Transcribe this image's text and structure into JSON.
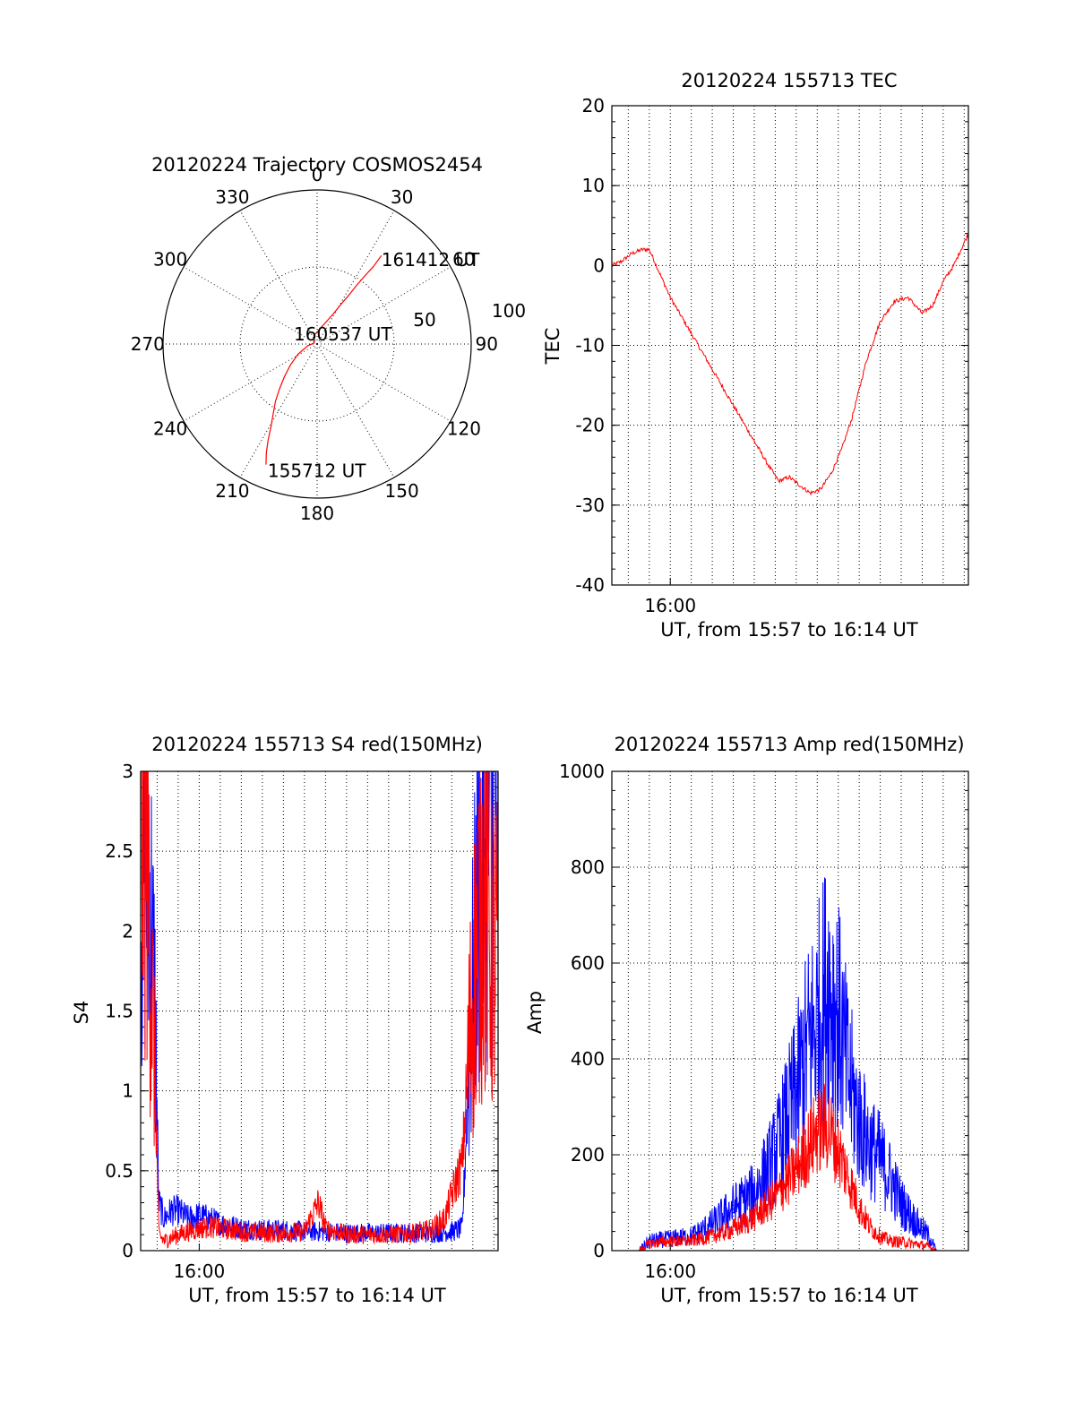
{
  "chart_data": [
    {
      "type": "polar",
      "title": "20120224 Trajectory COSMOS2454",
      "angle_labels": [
        "0",
        "30",
        "60",
        "90",
        "120",
        "150",
        "180",
        "210",
        "240",
        "270",
        "300",
        "330"
      ],
      "radius_labels": [
        "50",
        "100"
      ],
      "rmax": 100,
      "start_label": "155712 UT",
      "mid_label": "160537 UT",
      "end_label": "161412 UT",
      "series": [
        {
          "color": "#ff0000",
          "azimuth": [
            203,
            205,
            207,
            209,
            212,
            216,
            220,
            225,
            232,
            242,
            260,
            290,
            340,
            20,
            28,
            31,
            33,
            34,
            35,
            36,
            36
          ],
          "zenith": [
            85,
            78,
            70,
            62,
            54,
            46,
            38,
            30,
            22,
            14,
            6,
            2,
            6,
            14,
            22,
            30,
            38,
            46,
            54,
            62,
            71
          ]
        }
      ]
    },
    {
      "type": "line",
      "title": "20120224 155713 TEC",
      "xlabel": "UT, from 15:57 to 16:14 UT",
      "ylabel": "TEC",
      "xlim": [
        "15:57:13",
        "16:14:12"
      ],
      "ylim": [
        -40,
        20
      ],
      "yticks": [
        "20",
        "10",
        "0",
        "-10",
        "-20",
        "-30",
        "-40"
      ],
      "xtick_labels": [
        "16:00"
      ],
      "xtick_values": [
        "16:00"
      ],
      "series": [
        {
          "color": "#ff0000",
          "x": [
            "15:57:13",
            "15:57:40",
            "15:58:10",
            "15:58:40",
            "15:59:00",
            "15:59:30",
            "16:00:00",
            "16:00:40",
            "16:01:20",
            "16:02:00",
            "16:02:40",
            "16:03:20",
            "16:04:00",
            "16:04:40",
            "16:05:10",
            "16:05:40",
            "16:06:10",
            "16:06:40",
            "16:07:10",
            "16:07:40",
            "16:08:10",
            "16:08:40",
            "16:09:20",
            "16:10:00",
            "16:10:40",
            "16:11:20",
            "16:11:40",
            "16:12:00",
            "16:12:30",
            "16:13:00",
            "16:13:30",
            "16:14:12"
          ],
          "y": [
            0,
            0.5,
            1.5,
            2,
            2,
            -1,
            -4,
            -7,
            -10,
            -13,
            -16,
            -19,
            -22,
            -25,
            -27,
            -26.5,
            -27.5,
            -28.5,
            -28,
            -26,
            -23,
            -19,
            -12,
            -7,
            -4.5,
            -4,
            -5,
            -6,
            -5,
            -2,
            0,
            4
          ]
        }
      ]
    },
    {
      "type": "line",
      "title": "20120224 155713 S4 red(150MHz)",
      "xlabel": "UT, from 15:57 to 16:14 UT",
      "ylabel": "S4",
      "xlim": [
        "15:57:13",
        "16:14:12"
      ],
      "ylim": [
        0,
        3
      ],
      "yticks": [
        "3",
        "2.5",
        "2",
        "1.5",
        "1",
        "0.5",
        "0"
      ],
      "xtick_labels": [
        "16:00"
      ],
      "xtick_values": [
        "16:00"
      ],
      "series": [
        {
          "color": "#0000ff",
          "x": [
            "15:57:13",
            "15:57:25",
            "15:57:40",
            "15:57:55",
            "15:58:05",
            "15:58:20",
            "15:58:40",
            "15:59:00",
            "15:59:30",
            "16:00:00",
            "16:00:30",
            "16:01:00",
            "16:02:00",
            "16:03:00",
            "16:04:00",
            "16:05:00",
            "16:06:00",
            "16:07:00",
            "16:08:00",
            "16:09:00",
            "16:10:00",
            "16:11:00",
            "16:12:00",
            "16:12:30",
            "16:12:50",
            "16:13:10",
            "16:13:30",
            "16:13:50",
            "16:14:12"
          ],
          "y": [
            2.3,
            2.6,
            2.2,
            1.4,
            0.3,
            0.2,
            0.25,
            0.25,
            0.2,
            0.22,
            0.2,
            0.17,
            0.14,
            0.13,
            0.13,
            0.12,
            0.12,
            0.11,
            0.11,
            0.11,
            0.11,
            0.11,
            0.12,
            0.14,
            1.2,
            2.0,
            2.6,
            2.7,
            2.8
          ]
        },
        {
          "color": "#ff0000",
          "x": [
            "15:57:13",
            "15:57:25",
            "15:57:40",
            "15:57:55",
            "15:58:05",
            "15:58:20",
            "15:58:40",
            "15:59:00",
            "15:59:30",
            "16:00:00",
            "16:00:30",
            "16:01:00",
            "16:02:00",
            "16:03:00",
            "16:04:00",
            "16:05:00",
            "16:05:40",
            "16:06:00",
            "16:07:00",
            "16:08:00",
            "16:09:00",
            "16:10:00",
            "16:11:00",
            "16:11:40",
            "16:12:00",
            "16:12:30",
            "16:12:50",
            "16:13:10",
            "16:13:30",
            "16:13:50",
            "16:14:12"
          ],
          "y": [
            2.4,
            2.8,
            2.0,
            1.0,
            0.1,
            0.06,
            0.08,
            0.1,
            0.12,
            0.14,
            0.15,
            0.14,
            0.12,
            0.11,
            0.11,
            0.12,
            0.3,
            0.14,
            0.1,
            0.1,
            0.1,
            0.11,
            0.13,
            0.2,
            0.35,
            0.55,
            1.3,
            1.9,
            2.3,
            2.0,
            1.8
          ]
        }
      ]
    },
    {
      "type": "line",
      "title": "20120224 155713 Amp red(150MHz)",
      "xlabel": "UT, from 15:57 to 16:14 UT",
      "ylabel": "Amp",
      "xlim": [
        "15:57:13",
        "16:14:12"
      ],
      "ylim": [
        0,
        1000
      ],
      "yticks": [
        "1000",
        "800",
        "600",
        "400",
        "200",
        "0"
      ],
      "xtick_labels": [
        "16:00"
      ],
      "xtick_values": [
        "16:00"
      ],
      "series": [
        {
          "color": "#0000ff",
          "x": [
            "15:57:13",
            "15:58:30",
            "15:59:00",
            "16:00:00",
            "16:01:00",
            "16:02:00",
            "16:03:00",
            "16:04:00",
            "16:05:00",
            "16:06:00",
            "16:06:30",
            "16:07:00",
            "16:07:30",
            "16:08:00",
            "16:08:30",
            "16:09:00",
            "16:09:30",
            "16:10:00",
            "16:10:30",
            "16:11:00",
            "16:11:30",
            "16:12:00",
            "16:12:20",
            "16:12:40",
            "16:14:12"
          ],
          "y": [
            0,
            0,
            20,
            25,
            30,
            55,
            90,
            120,
            200,
            330,
            420,
            480,
            560,
            490,
            360,
            270,
            220,
            190,
            150,
            100,
            70,
            45,
            30,
            0,
            0
          ]
        },
        {
          "color": "#ff0000",
          "x": [
            "15:57:13",
            "15:58:30",
            "15:59:00",
            "16:00:00",
            "16:01:00",
            "16:02:00",
            "16:03:00",
            "16:04:00",
            "16:05:00",
            "16:06:00",
            "16:06:30",
            "16:07:00",
            "16:07:30",
            "16:08:00",
            "16:08:30",
            "16:09:00",
            "16:09:30",
            "16:10:00",
            "16:10:30",
            "16:11:00",
            "16:11:30",
            "16:12:00",
            "16:12:20",
            "16:12:40",
            "16:14:12"
          ],
          "y": [
            0,
            0,
            15,
            20,
            20,
            30,
            45,
            70,
            110,
            170,
            210,
            250,
            260,
            210,
            150,
            90,
            50,
            30,
            20,
            18,
            15,
            12,
            8,
            0,
            0
          ]
        }
      ]
    }
  ]
}
